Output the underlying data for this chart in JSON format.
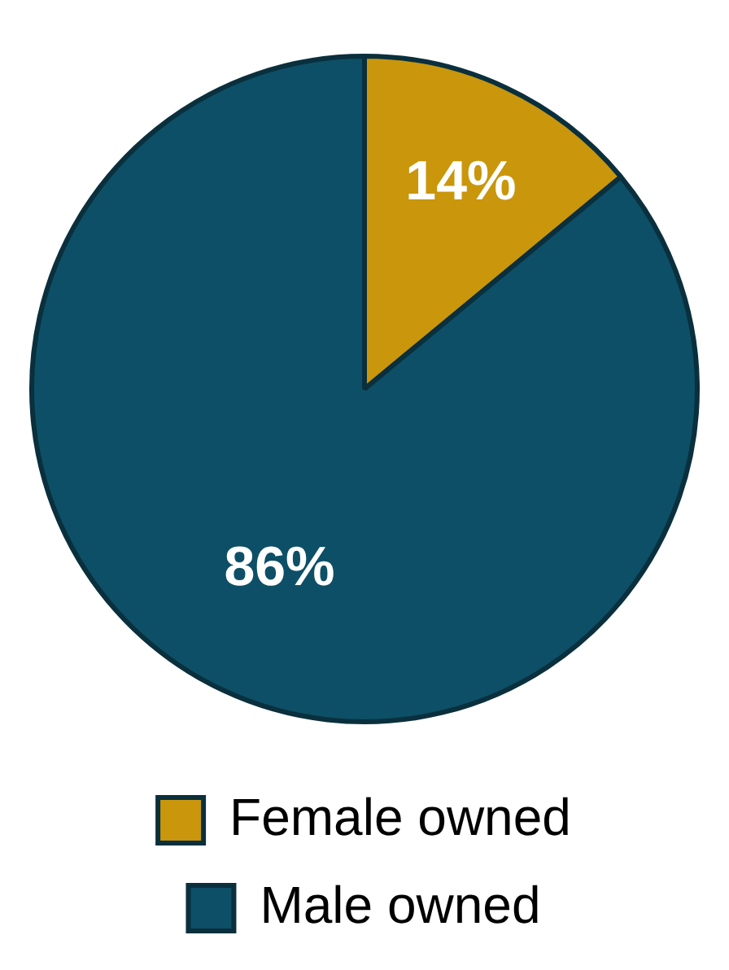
{
  "chart_data": {
    "type": "pie",
    "categories": [
      "Female owned",
      "Male owned"
    ],
    "values": [
      14,
      86
    ],
    "colors": [
      "#c9960c",
      "#0d4f66"
    ],
    "value_labels": [
      "14%",
      "86%"
    ],
    "legend": "bottom"
  }
}
